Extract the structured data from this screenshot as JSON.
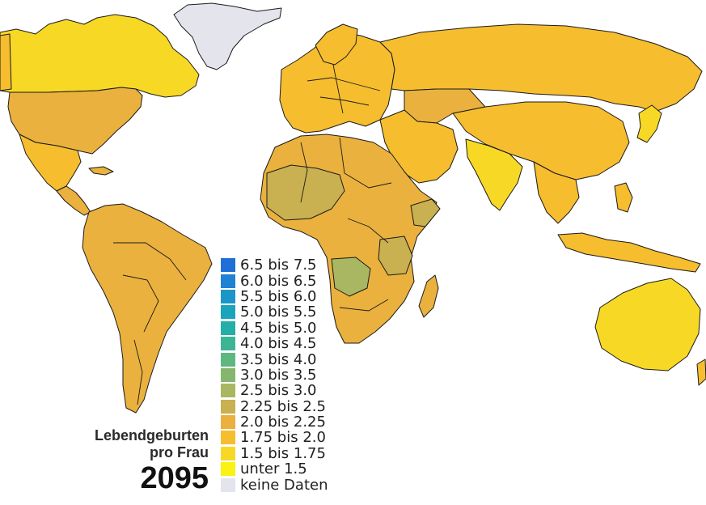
{
  "caption": {
    "line1": "Lebendgeburten",
    "line2": "pro Frau",
    "year": "2095"
  },
  "legend": [
    {
      "label": "6.5 bis 7.5",
      "color": "#1f6fd6"
    },
    {
      "label": "6.0 bis 6.5",
      "color": "#1f82d4"
    },
    {
      "label": "5.5 bis 6.0",
      "color": "#1c95c8"
    },
    {
      "label": "5.0 bis 5.5",
      "color": "#1aa5bd"
    },
    {
      "label": "4.5 bis 5.0",
      "color": "#23aea8"
    },
    {
      "label": "4.0 bis 4.5",
      "color": "#3db594"
    },
    {
      "label": "3.5 bis 4.0",
      "color": "#5db880"
    },
    {
      "label": "3.0 bis 3.5",
      "color": "#86b66e"
    },
    {
      "label": "2.5 bis 3.0",
      "color": "#a9b662"
    },
    {
      "label": "2.25 bis 2.5",
      "color": "#c9b050"
    },
    {
      "label": "2.0 bis 2.25",
      "color": "#eab13e"
    },
    {
      "label": "1.75 bis 2.0",
      "color": "#f6bd2e"
    },
    {
      "label": "1.5 bis 1.75",
      "color": "#f7d925"
    },
    {
      "label": "unter 1.5",
      "color": "#f9f214"
    },
    {
      "label": "keine Daten",
      "color": "#e3e4ec"
    }
  ]
}
